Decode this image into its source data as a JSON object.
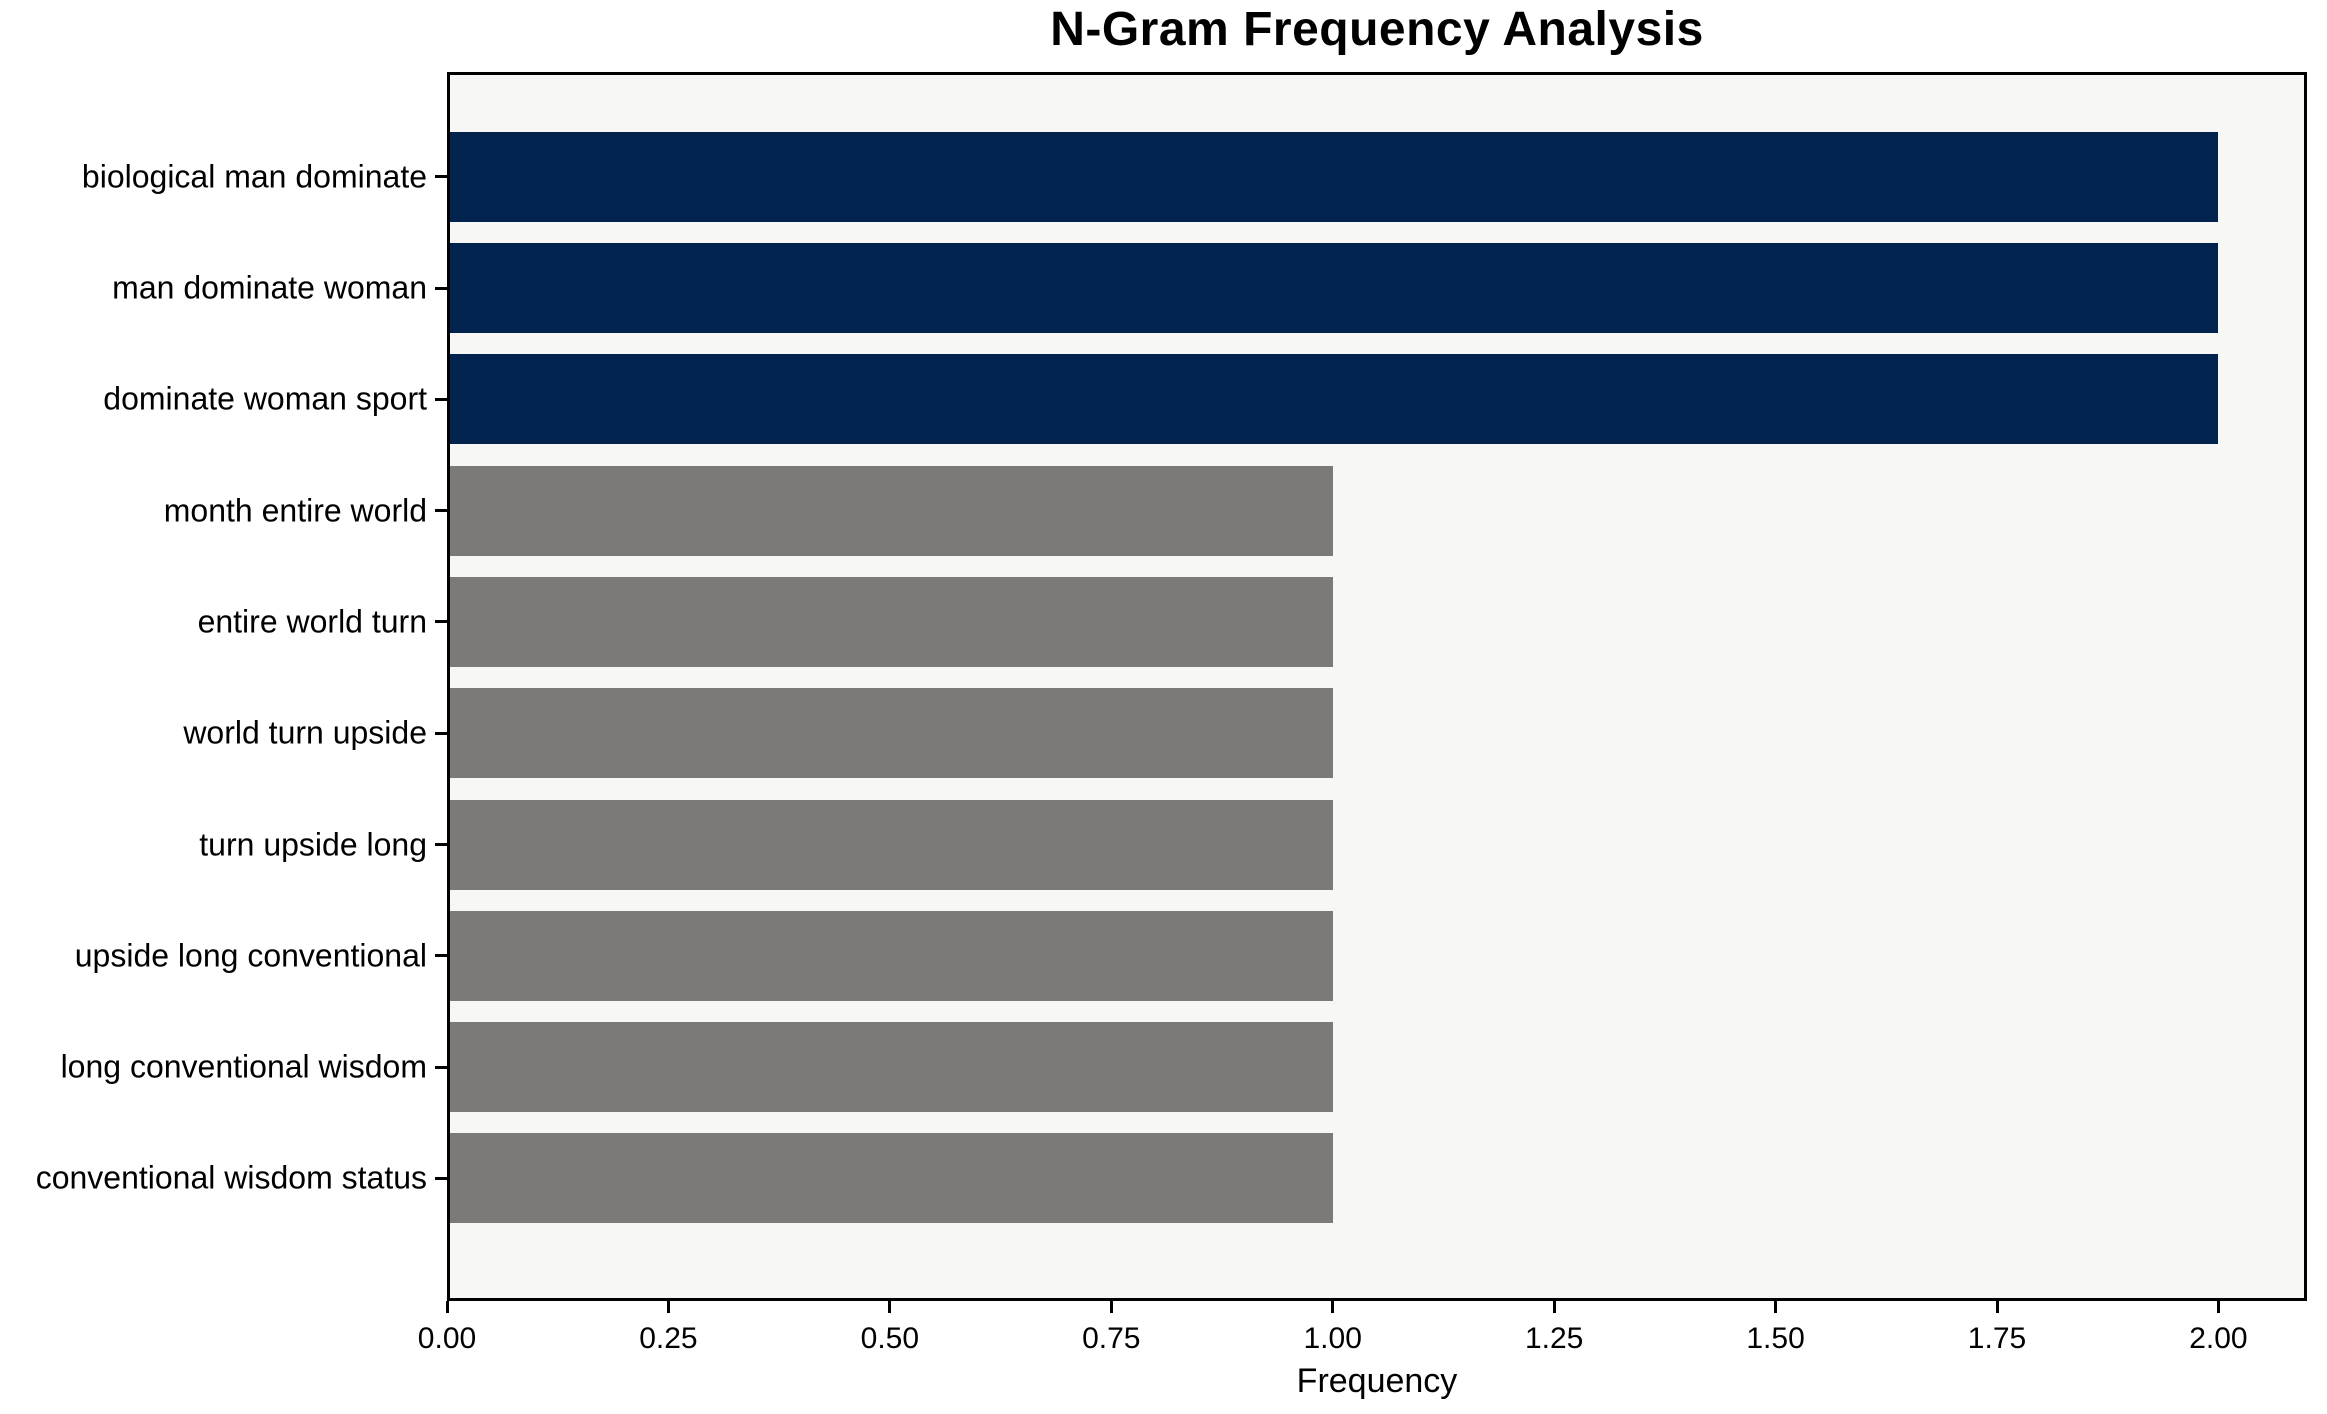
{
  "chart_data": {
    "type": "bar",
    "orientation": "horizontal",
    "title": "N-Gram Frequency Analysis",
    "xlabel": "Frequency",
    "ylabel": "",
    "categories": [
      "biological man dominate",
      "man dominate woman",
      "dominate woman sport",
      "month entire world",
      "entire world turn",
      "world turn upside",
      "turn upside long",
      "upside long conventional",
      "long conventional wisdom",
      "conventional wisdom status"
    ],
    "values": [
      2,
      2,
      2,
      1,
      1,
      1,
      1,
      1,
      1,
      1
    ],
    "bar_colors": [
      "#02234e",
      "#02234e",
      "#02234e",
      "#7b7a76",
      "#7b7a76",
      "#7b7a76",
      "#7b7a76",
      "#7b7a76",
      "#7b7a76",
      "#7b7a76"
    ],
    "xlim": [
      0,
      2.1
    ],
    "x_ticks": [
      0,
      0.25,
      0.5,
      0.75,
      1,
      1.25,
      1.5,
      1.75,
      2
    ],
    "x_tick_labels": [
      "0.00",
      "0.25",
      "0.50",
      "0.75",
      "1.00",
      "1.25",
      "1.50",
      "1.75",
      "2.00"
    ],
    "grid": false,
    "legend_position": "none",
    "colors": {
      "highlight_bar": "#02234e",
      "default_bar": "#7b7a76",
      "plot_background": "#f7f7f6",
      "figure_background": "#ffffff",
      "spine": "#000000",
      "text": "#000000"
    }
  }
}
